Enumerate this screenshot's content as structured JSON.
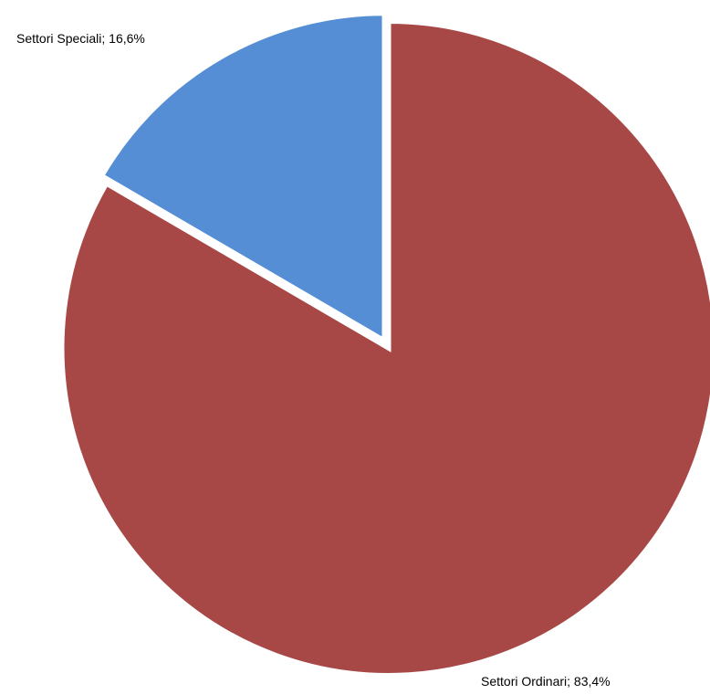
{
  "chart_data": {
    "type": "pie",
    "start_angle_deg": 0,
    "direction": "clockwise",
    "slices": [
      {
        "name": "Settori Ordinari",
        "value": 83.4,
        "display": "Settori Ordinari; 83,4%",
        "color": "#A84846"
      },
      {
        "name": "Settori Speciali",
        "value": 16.6,
        "display": "Settori Speciali; 16,6%",
        "color": "#558ED5"
      }
    ]
  }
}
